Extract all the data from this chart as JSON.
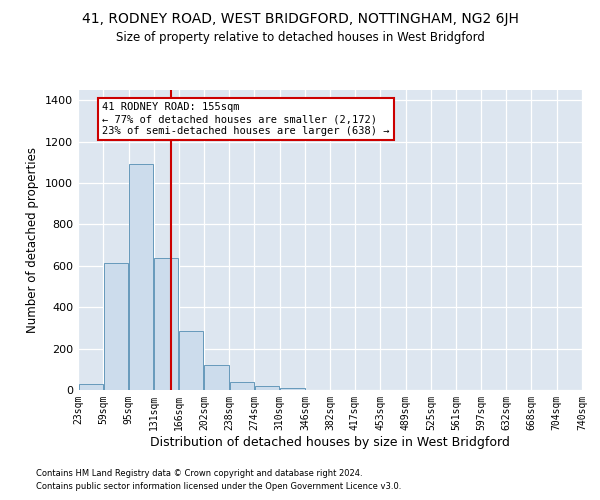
{
  "title": "41, RODNEY ROAD, WEST BRIDGFORD, NOTTINGHAM, NG2 6JH",
  "subtitle": "Size of property relative to detached houses in West Bridgford",
  "xlabel": "Distribution of detached houses by size in West Bridgford",
  "ylabel": "Number of detached properties",
  "footnote1": "Contains HM Land Registry data © Crown copyright and database right 2024.",
  "footnote2": "Contains public sector information licensed under the Open Government Licence v3.0.",
  "annotation_line1": "41 RODNEY ROAD: 155sqm",
  "annotation_line2": "← 77% of detached houses are smaller (2,172)",
  "annotation_line3": "23% of semi-detached houses are larger (638) →",
  "bar_color": "#ccdcec",
  "bar_edge_color": "#6699bb",
  "vline_color": "#cc0000",
  "vline_x": 155,
  "background_color": "#dde6f0",
  "bins": [
    23,
    59,
    95,
    131,
    166,
    202,
    238,
    274,
    310,
    346,
    382,
    417,
    453,
    489,
    525,
    561,
    597,
    632,
    668,
    704,
    740
  ],
  "values": [
    30,
    612,
    1090,
    638,
    285,
    120,
    40,
    20,
    10,
    0,
    0,
    0,
    0,
    0,
    0,
    0,
    0,
    0,
    0,
    0
  ],
  "ylim": [
    0,
    1450
  ],
  "yticks": [
    0,
    200,
    400,
    600,
    800,
    1000,
    1200,
    1400
  ]
}
